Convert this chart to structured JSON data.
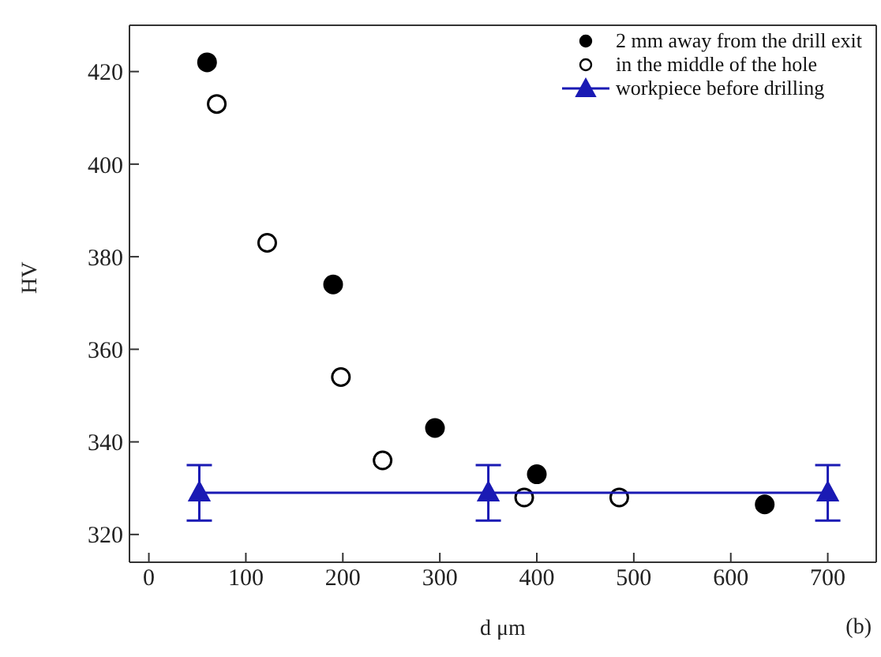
{
  "chart_data": {
    "type": "scatter",
    "xlabel": "d μm",
    "ylabel": "HV",
    "annotations": [
      "(b)"
    ],
    "xlim": [
      -20,
      750
    ],
    "xticks": [
      0,
      100,
      200,
      300,
      400,
      500,
      600,
      700
    ],
    "ylim": [
      314,
      430
    ],
    "yticks": [
      320,
      340,
      360,
      380,
      400,
      420
    ],
    "grid": false,
    "legend": "top right",
    "series": [
      {
        "name": "2 mm away from the drill exit",
        "type": "scatter",
        "marker": "circle",
        "color": "#000000",
        "x": [
          60,
          190,
          295,
          400,
          635
        ],
        "values": [
          422,
          374,
          343,
          333,
          326.5
        ]
      },
      {
        "name": "in the middle of the hole",
        "type": "scatter",
        "marker": "circle",
        "color": "#ffffff",
        "x": [
          70,
          122,
          198,
          241,
          387,
          485
        ],
        "values": [
          413,
          383,
          354,
          336,
          328,
          328
        ]
      },
      {
        "name": "workpiece before drilling",
        "type": "line",
        "marker": "triangle",
        "color": "#1a1ab4",
        "x": [
          52,
          350,
          700
        ],
        "values": [
          329,
          329,
          329
        ],
        "errors": [
          6,
          6,
          6
        ]
      }
    ]
  }
}
